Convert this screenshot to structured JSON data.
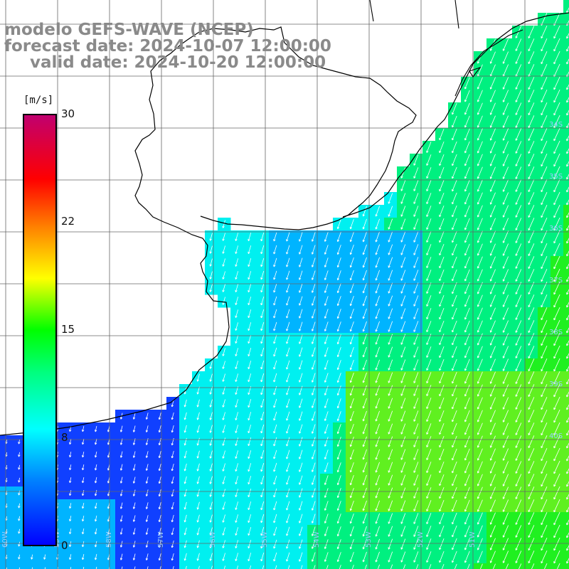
{
  "title": {
    "model": "modelo GEFS-WAVE (NCEP)",
    "forecast": "forecast date: 2024-10-07 12:00:00",
    "valid": "valid date: 2024-10-20 12:00:00"
  },
  "colorbar": {
    "unit": "[m/s]",
    "min": 0,
    "max": 30,
    "ticks": [
      "30",
      "22",
      "15",
      "8",
      "0"
    ],
    "tick_values": [
      30,
      22,
      15,
      8,
      0
    ],
    "colors": [
      "#0000ff",
      "#00c8ff",
      "#00ffff",
      "#00ff00",
      "#ffff00",
      "#ff8000",
      "#ff0000",
      "#c00070"
    ]
  },
  "map": {
    "grid_lines": 11,
    "lon_labels": [
      "60W",
      "59W",
      "58W",
      "57W",
      "56W",
      "55W",
      "54W",
      "53W",
      "52W",
      "51W"
    ],
    "lat_labels": [
      "34S",
      "35S",
      "36S",
      "37S",
      "38S",
      "39S",
      "40S"
    ],
    "ocean_colors": [
      "#1040ff",
      "#00b4ff",
      "#00f0f0",
      "#00f080",
      "#20f020",
      "#60f020"
    ],
    "wind_direction": "south-southwest"
  }
}
